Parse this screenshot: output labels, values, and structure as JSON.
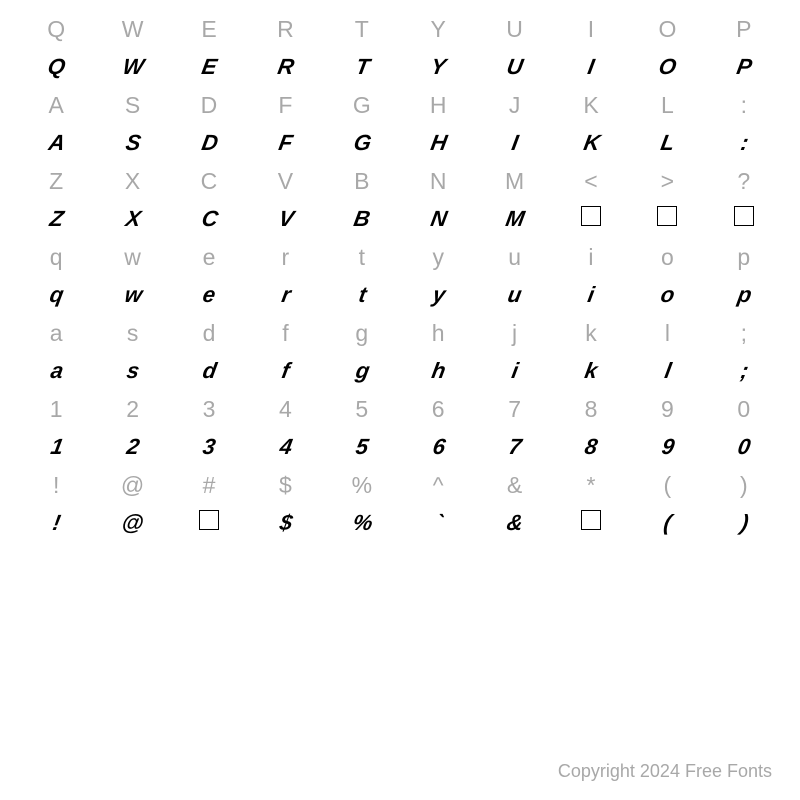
{
  "grid": {
    "rows": [
      {
        "type": "ref",
        "chars": [
          "Q",
          "W",
          "E",
          "R",
          "T",
          "Y",
          "U",
          "I",
          "O",
          "P"
        ]
      },
      {
        "type": "disp",
        "chars": [
          "Q",
          "W",
          "E",
          "R",
          "T",
          "Y",
          "U",
          "I",
          "O",
          "P"
        ]
      },
      {
        "type": "ref",
        "chars": [
          "A",
          "S",
          "D",
          "F",
          "G",
          "H",
          "J",
          "K",
          "L",
          ":"
        ]
      },
      {
        "type": "disp",
        "chars": [
          "A",
          "S",
          "D",
          "F",
          "G",
          "H",
          "I",
          "K",
          "L",
          ":"
        ]
      },
      {
        "type": "ref",
        "chars": [
          "Z",
          "X",
          "C",
          "V",
          "B",
          "N",
          "M",
          "<",
          ">",
          "?"
        ]
      },
      {
        "type": "disp",
        "chars": [
          "Z",
          "X",
          "C",
          "V",
          "B",
          "N",
          "M",
          "□",
          "□",
          "□"
        ]
      },
      {
        "type": "ref",
        "chars": [
          "q",
          "w",
          "e",
          "r",
          "t",
          "y",
          "u",
          "i",
          "o",
          "p"
        ]
      },
      {
        "type": "disp",
        "chars": [
          "q",
          "w",
          "e",
          "r",
          "t",
          "y",
          "u",
          "i",
          "o",
          "p"
        ]
      },
      {
        "type": "ref",
        "chars": [
          "a",
          "s",
          "d",
          "f",
          "g",
          "h",
          "j",
          "k",
          "l",
          ";"
        ]
      },
      {
        "type": "disp",
        "chars": [
          "a",
          "s",
          "d",
          "f",
          "g",
          "h",
          "i",
          "k",
          "l",
          ";"
        ]
      },
      {
        "type": "ref",
        "chars": [
          "1",
          "2",
          "3",
          "4",
          "5",
          "6",
          "7",
          "8",
          "9",
          "0"
        ]
      },
      {
        "type": "disp",
        "chars": [
          "1",
          "2",
          "3",
          "4",
          "5",
          "6",
          "7",
          "8",
          "9",
          "0"
        ]
      },
      {
        "type": "ref",
        "chars": [
          "!",
          "@",
          "#",
          "$",
          "%",
          "^",
          "&",
          "*",
          "(",
          ")"
        ]
      },
      {
        "type": "disp",
        "chars": [
          "!",
          "@",
          "□",
          "$",
          "%",
          "`",
          "&",
          "□",
          "(",
          ")"
        ]
      }
    ]
  },
  "colors": {
    "ref_text": "#a8a8a8",
    "disp_text": "#000000",
    "background": "#ffffff"
  },
  "typography": {
    "ref_fontsize": 23,
    "disp_fontsize": 22,
    "copyright_fontsize": 18
  },
  "copyright": "Copyright 2024 Free Fonts"
}
